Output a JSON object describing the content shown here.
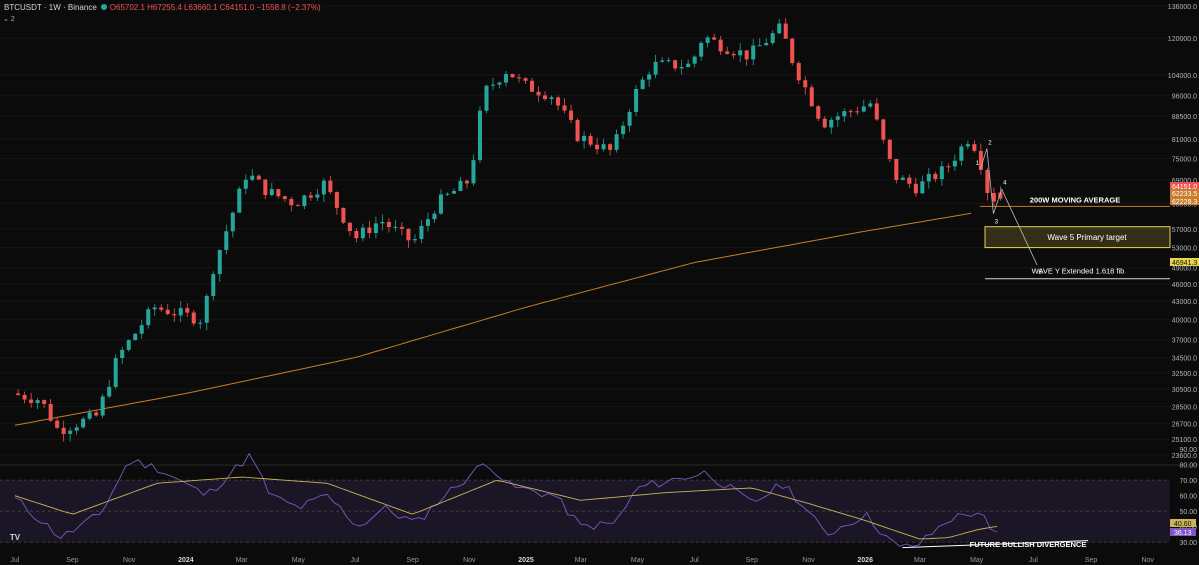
{
  "header": {
    "symbol": "BTCUSDT · 1W · Binance",
    "ohlc": "O65702.1 H67255.4 L63660.1 C64151.0 −1558.8 (−2.37%)",
    "indicator_badge": "2",
    "logo_text": "TV"
  },
  "colors": {
    "up": "#26a69a",
    "down": "#ef5350",
    "ma200": "#c77d2b",
    "rsi": "#7e57c2",
    "rsi_ma": "#c9b458",
    "zone": "#e8d44d",
    "background": "#0b0b0b"
  },
  "chart_data": [
    {
      "type": "candlestick",
      "title": "BTCUSDT · 1W · Binance",
      "y_scale": "log",
      "ylim": [
        23600,
        136000
      ],
      "y_ticks": [
        136000.0,
        120000.0,
        104000.0,
        96000.0,
        88500.0,
        81000.0,
        75000.0,
        69000.0,
        63000.0,
        57000.0,
        53000.0,
        49000.0,
        46000.0,
        43000.0,
        40000.0,
        37000.0,
        34500.0,
        32500.0,
        30500.0,
        28500.0,
        26700.0,
        25100.0,
        23600.0
      ],
      "x_ticks": [
        "Jul",
        "Sep",
        "Nov",
        "2024",
        "Mar",
        "May",
        "Jul",
        "Sep",
        "Nov",
        "2025",
        "Mar",
        "May",
        "Jul",
        "Sep",
        "Nov",
        "2026",
        "Mar",
        "May",
        "Jul",
        "Sep",
        "Nov"
      ],
      "price_path_approx": [
        [
          "2023-07",
          30000
        ],
        [
          "2023-08",
          29300
        ],
        [
          "2023-08-20",
          26000
        ],
        [
          "2023-10",
          27500
        ],
        [
          "2023-10-23",
          34500
        ],
        [
          "2023-12",
          42000
        ],
        [
          "2024-01-23",
          40000
        ],
        [
          "2024-02",
          48000
        ],
        [
          "2024-03-10",
          71000
        ],
        [
          "2024-04",
          66000
        ],
        [
          "2024-05",
          63000
        ],
        [
          "2024-06",
          68000
        ],
        [
          "2024-07-05",
          55000
        ],
        [
          "2024-08",
          59000
        ],
        [
          "2024-09-05",
          54000
        ],
        [
          "2024-10",
          63000
        ],
        [
          "2024-11-05",
          69000
        ],
        [
          "2024-11-20",
          97000
        ],
        [
          "2024-12-15",
          106000
        ],
        [
          "2025-01",
          100000
        ],
        [
          "2025-02",
          96000
        ],
        [
          "2025-03",
          82000
        ],
        [
          "2025-04-07",
          77000
        ],
        [
          "2025-05",
          96000
        ],
        [
          "2025-05-20",
          108000
        ],
        [
          "2025-07",
          108000
        ],
        [
          "2025-07-14",
          121000
        ],
        [
          "2025-08",
          117000
        ],
        [
          "2025-09",
          112000
        ],
        [
          "2025-10-06",
          125000
        ],
        [
          "2025-10-20",
          108000
        ],
        [
          "2025-11-20",
          86000
        ],
        [
          "2025-12",
          88000
        ],
        [
          "2026-01-10",
          93000
        ],
        [
          "2026-02-05",
          70000
        ],
        [
          "2026-03",
          67000
        ],
        [
          "2026-04",
          72000
        ],
        [
          "2026-04-25",
          81000
        ],
        [
          "2026-05-05",
          78000
        ],
        [
          "2026-05-18",
          64500
        ],
        [
          "2026-05-26",
          64151
        ]
      ],
      "last_candle": {
        "open": 65702.1,
        "high": 67255.4,
        "low": 63660.1,
        "close": 64151.0
      },
      "ma200_path_approx": [
        [
          "2023-07",
          26500
        ],
        [
          "2024-01",
          30000
        ],
        [
          "2024-07",
          34500
        ],
        [
          "2025-01",
          42000
        ],
        [
          "2025-07",
          50000
        ],
        [
          "2026-01",
          56500
        ],
        [
          "2026-05",
          60800
        ]
      ],
      "price_labels": [
        {
          "value": "64151.0",
          "color": "#ef5350"
        },
        {
          "value": "62233.5",
          "color": "#c77d2b"
        },
        {
          "value": "62228.3",
          "color": "#c77d2b"
        },
        {
          "value": "46941.3",
          "color": "#e8d44d"
        }
      ],
      "annotations": {
        "ma_label": "200W MOVING AVERAGE",
        "zone_label": "Wave 5 Primary target",
        "zone_range": [
          53000,
          57500
        ],
        "fib_label": "WAVE Y Extended 1.618 fib",
        "fib_level": 46941.3,
        "waves": [
          "1",
          "2",
          "3",
          "4",
          "5"
        ]
      }
    },
    {
      "type": "line",
      "title": "RSI",
      "ylim": [
        25,
        92
      ],
      "y_ticks": [
        "90.00",
        "80.00",
        "70.00",
        "60.00",
        "50.00",
        "40.00",
        "30.00"
      ],
      "band": [
        30,
        70
      ],
      "rsi_path_approx": [
        [
          "2023-07",
          58
        ],
        [
          "2023-08-20",
          33
        ],
        [
          "2023-10",
          48
        ],
        [
          "2023-11",
          83
        ],
        [
          "2023-12",
          78
        ],
        [
          "2024-01-23",
          60
        ],
        [
          "2024-03-10",
          86
        ],
        [
          "2024-04",
          60
        ],
        [
          "2024-05",
          52
        ],
        [
          "2024-06",
          60
        ],
        [
          "2024-07-05",
          40
        ],
        [
          "2024-08",
          52
        ],
        [
          "2024-09-05",
          42
        ],
        [
          "2024-10",
          58
        ],
        [
          "2024-11-20",
          82
        ],
        [
          "2024-12-15",
          66
        ],
        [
          "2025-02",
          60
        ],
        [
          "2025-03",
          40
        ],
        [
          "2025-04-07",
          42
        ],
        [
          "2025-05",
          65
        ],
        [
          "2025-07-14",
          75
        ],
        [
          "2025-09",
          55
        ],
        [
          "2025-10-06",
          68
        ],
        [
          "2025-11-20",
          35
        ],
        [
          "2026-01",
          48
        ],
        [
          "2026-02-05",
          26
        ],
        [
          "2026-03",
          29
        ],
        [
          "2026-04",
          45
        ],
        [
          "2026-05-05",
          50
        ],
        [
          "2026-05-18",
          34
        ],
        [
          "2026-05-26",
          36.13
        ]
      ],
      "rsi_ma_path_approx": [
        [
          "2023-07",
          60
        ],
        [
          "2023-09",
          48
        ],
        [
          "2023-12",
          68
        ],
        [
          "2024-03",
          72
        ],
        [
          "2024-06",
          68
        ],
        [
          "2024-09",
          48
        ],
        [
          "2024-12",
          70
        ],
        [
          "2025-03",
          57
        ],
        [
          "2025-06",
          62
        ],
        [
          "2025-09",
          65
        ],
        [
          "2025-11",
          55
        ],
        [
          "2026-01",
          44
        ],
        [
          "2026-03",
          32
        ],
        [
          "2026-04",
          33
        ],
        [
          "2026-05",
          38
        ],
        [
          "2026-05-26",
          40.6
        ]
      ],
      "values": {
        "rsi_ma": "40.60",
        "rsi": "36.13"
      },
      "annotation": "FUTURE BULLISH DIVERGENCE"
    }
  ]
}
